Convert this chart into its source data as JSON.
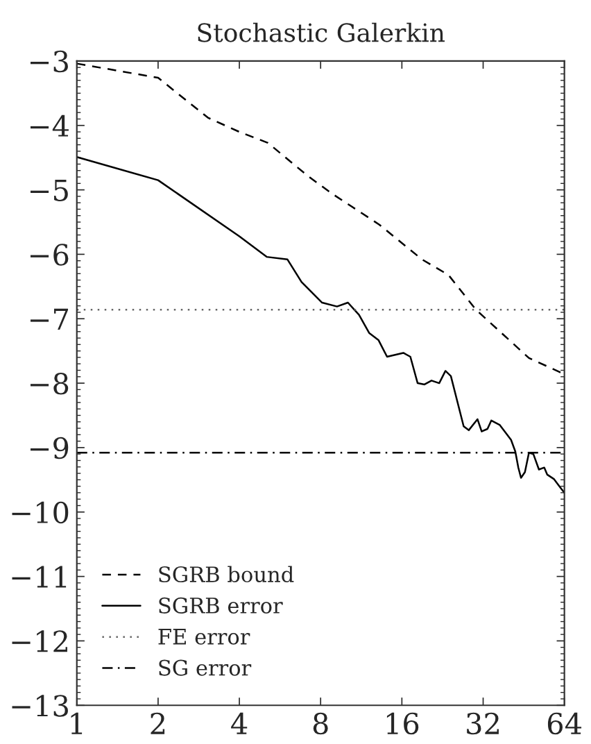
{
  "chart_data": {
    "type": "line",
    "title": "Stochastic Galerkin",
    "log": "x",
    "grid": false,
    "legend": "bottom left",
    "marker": "none",
    "xlim": [
      1,
      64
    ],
    "xticks": [
      1,
      2,
      4,
      8,
      16,
      32,
      64
    ],
    "ylim": [
      -13,
      -3
    ],
    "yticks": [
      -13,
      -12,
      -11,
      -10,
      -9,
      -8,
      -7,
      -6,
      -5,
      -4,
      -3
    ],
    "series": [
      {
        "name": "SGRB bound",
        "color": "#000000",
        "line_style": "dashed",
        "x": [
          1,
          2,
          3.06,
          4,
          5.1,
          7.2,
          8.9,
          13.2,
          19,
          23.8,
          30.1,
          47.3,
          61.7,
          64
        ],
        "values": [
          -3.04,
          -3.26,
          -3.88,
          -4.1,
          -4.27,
          -4.79,
          -5.07,
          -5.54,
          -6.08,
          -6.32,
          -6.86,
          -7.61,
          -7.83,
          -7.83
        ]
      },
      {
        "name": "SGRB error",
        "color": "#000000",
        "line_style": "solid",
        "x": [
          1,
          2,
          4,
          5.05,
          6.03,
          6.8,
          8.1,
          9.2,
          10.1,
          11.1,
          12.1,
          13.1,
          14.1,
          16.2,
          17.2,
          18.3,
          19.4,
          20.6,
          22,
          23.2,
          24.3,
          27.1,
          28.3,
          30.5,
          31.6,
          33.2,
          34.3,
          36.9,
          40.6,
          42.1,
          43.2,
          44.2,
          45.7,
          47.3,
          49.1,
          51.5,
          53.9,
          55.3,
          58.6,
          62.3,
          64
        ],
        "values": [
          -4.49,
          -4.85,
          -5.72,
          -6.04,
          -6.08,
          -6.43,
          -6.75,
          -6.81,
          -6.75,
          -6.94,
          -7.22,
          -7.33,
          -7.59,
          -7.53,
          -7.59,
          -8.0,
          -8.02,
          -7.96,
          -8.0,
          -7.81,
          -7.89,
          -8.67,
          -8.73,
          -8.56,
          -8.75,
          -8.71,
          -8.58,
          -8.65,
          -8.88,
          -9.06,
          -9.31,
          -9.47,
          -9.38,
          -9.08,
          -9.1,
          -9.34,
          -9.31,
          -9.42,
          -9.49,
          -9.64,
          -9.7
        ]
      }
    ],
    "ref_lines": [
      {
        "axis": "y",
        "value": -6.86,
        "label": "FE error",
        "color": "#666666",
        "line_style": "dotted"
      },
      {
        "axis": "y",
        "value": -9.08,
        "label": "SG error",
        "color": "#000000",
        "line_style": "dashdot"
      }
    ]
  }
}
